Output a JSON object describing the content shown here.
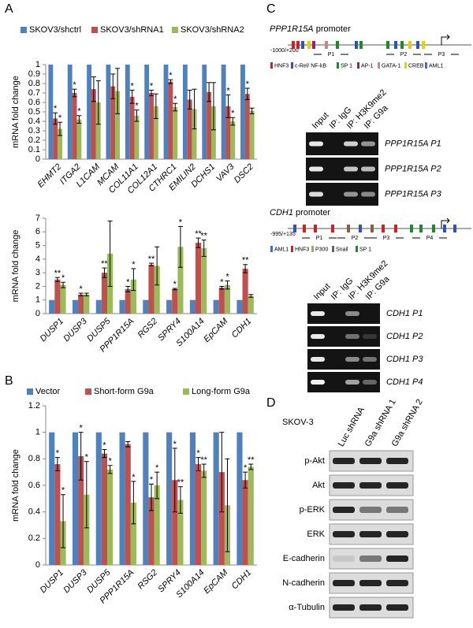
{
  "panel_labels": [
    "A",
    "B",
    "C",
    "D"
  ],
  "chart_data": [
    {
      "type": "bar",
      "y_label": "mRNA fold change",
      "legend": true,
      "categories": [
        "EHMT2",
        "ITGA2",
        "L1CAM",
        "MCAM",
        "COL11A1",
        "COL12A1",
        "CTHRC1",
        "EMILIN2",
        "DCHS1",
        "VAV3",
        "DSC2"
      ],
      "series": [
        {
          "name": "SKOV3/shctrl",
          "color": "#4f81bd",
          "values": [
            1,
            1,
            1,
            1,
            1,
            1,
            1,
            1,
            1,
            1,
            1
          ],
          "errors": [
            0,
            0,
            0,
            0,
            0,
            0,
            0,
            0,
            0,
            0,
            0
          ],
          "significance": [
            null,
            null,
            null,
            null,
            null,
            null,
            null,
            null,
            null,
            null,
            null
          ]
        },
        {
          "name": "SKOV3/shRNA1",
          "color": "#c0504d",
          "values": [
            0.43,
            0.7,
            0.74,
            0.77,
            0.66,
            0.7,
            0.82,
            0.63,
            0.71,
            0.56,
            0.69
          ],
          "errors": [
            0.06,
            0.04,
            0.13,
            0.13,
            0.07,
            0.03,
            0.02,
            0.1,
            0.1,
            0.12,
            0.06
          ],
          "significance": [
            "*",
            "*",
            null,
            null,
            "*",
            "*",
            "*",
            null,
            null,
            "*",
            "*"
          ]
        },
        {
          "name": "SKOV3/shRNA2",
          "color": "#9bbb59",
          "values": [
            0.32,
            0.42,
            0.6,
            0.72,
            0.46,
            0.56,
            0.55,
            0.53,
            0.56,
            0.4,
            0.51
          ],
          "errors": [
            0.07,
            0.04,
            0.23,
            0.24,
            0.06,
            0.13,
            0.04,
            0.21,
            0.25,
            0.04,
            0.03
          ],
          "significance": [
            "*",
            "*",
            null,
            null,
            "*",
            null,
            "*",
            null,
            null,
            "*",
            null
          ]
        }
      ],
      "ylim": [
        0,
        1
      ],
      "yticks": [
        0,
        0.1,
        0.2,
        0.3,
        0.4,
        0.5,
        0.6,
        0.7,
        0.8,
        0.9,
        1
      ]
    },
    {
      "type": "bar",
      "y_label": "mRNA fold change",
      "legend": false,
      "categories": [
        "DUSP1",
        "DUSP3",
        "DUSP5",
        "PPP1R15A",
        "RGS2",
        "SPRY4",
        "S100A14",
        "EpCAM",
        "CDH1"
      ],
      "series": [
        {
          "color": "#4f81bd",
          "values": [
            1,
            1,
            1,
            1,
            1,
            1,
            1,
            1,
            1
          ],
          "errors": [
            0,
            0,
            0,
            0,
            0,
            0,
            0,
            0,
            0
          ],
          "significance": [
            null,
            null,
            null,
            null,
            null,
            null,
            null,
            null,
            null
          ]
        },
        {
          "color": "#c0504d",
          "values": [
            2.5,
            1.4,
            3.0,
            1.8,
            3.6,
            1.8,
            5.2,
            1.9,
            3.3
          ],
          "errors": [
            0.15,
            0.1,
            0.35,
            0.2,
            0.1,
            0.05,
            0.35,
            0.1,
            0.3
          ],
          "significance": [
            "**",
            "*",
            "**",
            "*",
            "**",
            "*",
            "**",
            "*",
            "**"
          ]
        },
        {
          "color": "#9bbb59",
          "values": [
            2.1,
            1.4,
            4.4,
            2.5,
            3.5,
            4.9,
            4.8,
            2.1,
            1.3
          ],
          "errors": [
            0.2,
            0.1,
            2.4,
            0.8,
            1.4,
            1.5,
            0.6,
            0.3,
            0.1
          ],
          "significance": [
            "*",
            null,
            null,
            "*",
            null,
            "*",
            "**",
            "*",
            null
          ]
        }
      ],
      "ylim": [
        0,
        7
      ],
      "yticks": [
        0,
        1,
        2,
        3,
        4,
        5,
        6,
        7
      ]
    },
    {
      "type": "bar",
      "y_label": "mRNA fold change",
      "legend": true,
      "categories": [
        "DUSP1",
        "DUSP3",
        "DUSP5",
        "PPP1R15A",
        "RSG2",
        "SPRY4",
        "S100A14",
        "EpCAM",
        "CDH1"
      ],
      "series": [
        {
          "name": "Vector",
          "color": "#4f81bd",
          "values": [
            1,
            1,
            1,
            1,
            1,
            1,
            1,
            1,
            1
          ],
          "errors": [
            0,
            0,
            0,
            0,
            0,
            0,
            0,
            0,
            0
          ],
          "significance": [
            null,
            null,
            null,
            null,
            null,
            null,
            null,
            null,
            null
          ]
        },
        {
          "name": "Short-form G9a",
          "color": "#c0504d",
          "values": [
            0.76,
            0.82,
            0.84,
            0.91,
            0.51,
            0.64,
            0.76,
            0.7,
            0.64
          ],
          "errors": [
            0.05,
            0.18,
            0.03,
            0.02,
            0.1,
            0.24,
            0.05,
            0.3,
            0.06
          ],
          "significance": [
            "*",
            "*",
            "*",
            null,
            "*",
            "*",
            "*",
            null,
            "*"
          ]
        },
        {
          "name": "Long-form G9a",
          "color": "#9bbb59",
          "values": [
            0.33,
            0.53,
            0.72,
            0.47,
            0.6,
            0.49,
            0.71,
            0.45,
            0.74
          ],
          "errors": [
            0.2,
            0.25,
            0.03,
            0.16,
            0.1,
            0.1,
            0.05,
            0.35,
            0.02
          ],
          "significance": [
            "*",
            "*",
            "*",
            "*",
            "*",
            "**",
            "**",
            null,
            "**"
          ]
        }
      ],
      "ylim": [
        0,
        1.2
      ],
      "yticks": [
        0,
        0.2,
        0.4,
        0.6,
        0.8,
        1,
        1.2
      ]
    }
  ],
  "promoter_1": {
    "gene": "PPP1R15A",
    "label": "promoter",
    "range": "-1000/+200",
    "primers": [
      "P1",
      "P2",
      "P3"
    ],
    "legend": [
      "HNF3",
      "c-Rel/ NF-kB",
      "SP 1",
      "AP-1",
      "GATA-1",
      "CREB",
      "AML1"
    ]
  },
  "gel_1": {
    "lanes": [
      "Input",
      "IP: IgG",
      "IP: H3K9me2",
      "IP: G9a"
    ],
    "rows": [
      "PPP1R15A P1",
      "PPP1R15A P2",
      "PPP1R15A P3"
    ]
  },
  "promoter_2": {
    "gene": "CDH1",
    "label": "promoter",
    "range": "-995/+135",
    "primers": [
      "P1",
      "P2",
      "P3",
      "P4"
    ],
    "legend": [
      "AML1",
      "HNF3",
      "P300",
      "Snail",
      "SP 1"
    ]
  },
  "gel_2": {
    "lanes": [
      "Input",
      "IP: IgG",
      "IP: H3K9me2",
      "IP: G9a"
    ],
    "rows": [
      "CDH1 P1",
      "CDH1 P2",
      "CDH1 P3",
      "CDH1 P4"
    ]
  },
  "western": {
    "cell_line": "SKOV-3",
    "lanes": [
      "Luc shRNA",
      "G9a shRNA 1",
      "G9a shRNA 2"
    ],
    "rows": [
      "p-Akt",
      "Akt",
      "p-ERK",
      "ERK",
      "E-cadherin",
      "N-cadherin",
      "α-Tubulin"
    ]
  }
}
